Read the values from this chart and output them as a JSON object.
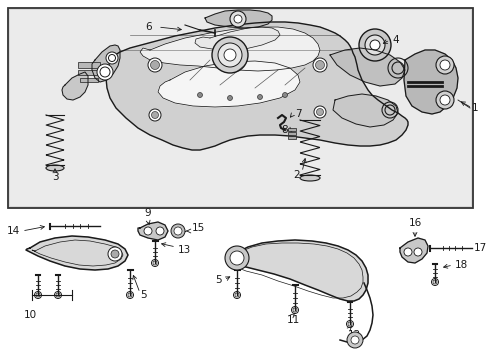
{
  "bg_color": "#ffffff",
  "box_fill": "#e8e8e8",
  "line_color": "#1a1a1a",
  "fig_width": 4.89,
  "fig_height": 3.6,
  "dpi": 100,
  "font_size": 7.5,
  "lw": 0.7
}
